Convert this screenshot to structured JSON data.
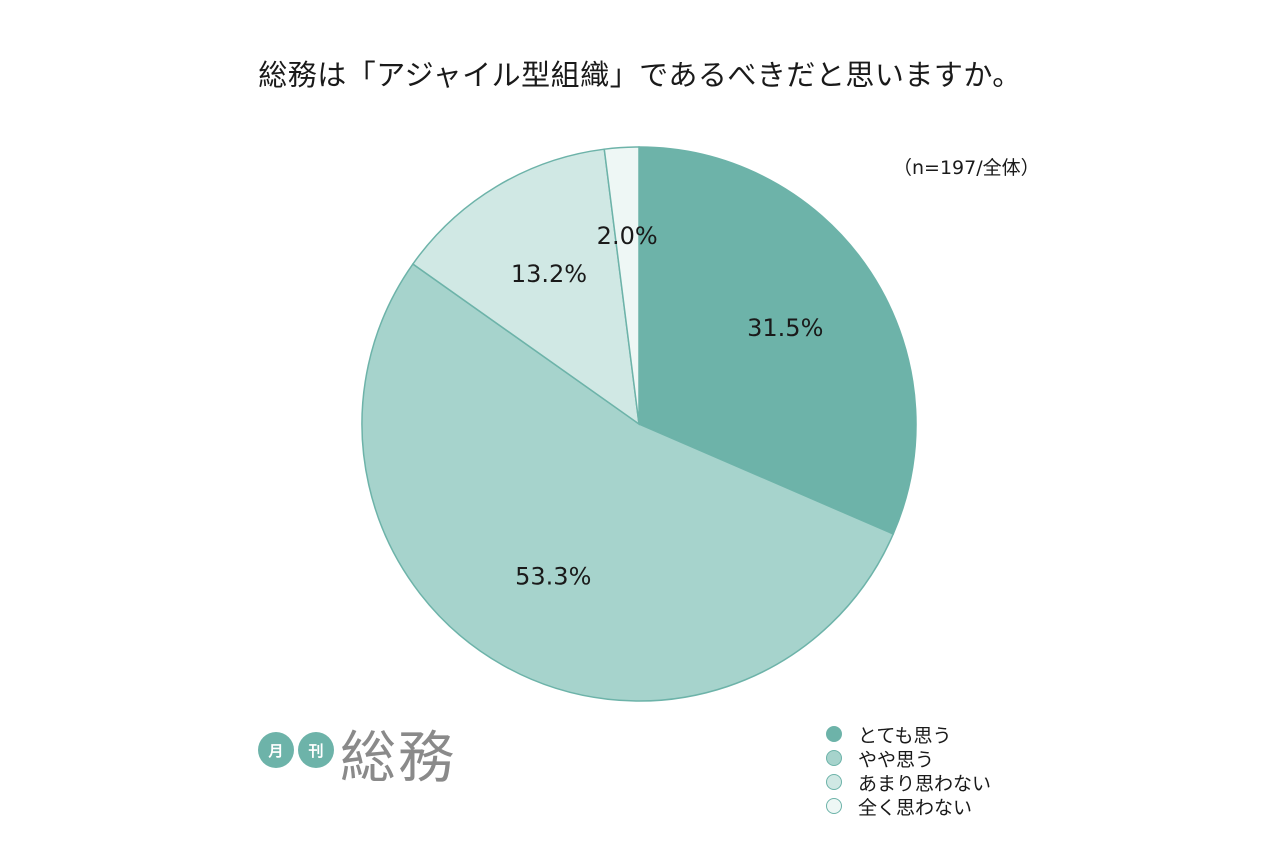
{
  "title": "総務は「アジャイル型組織」であるべきだと思いますか。",
  "note": "（n=197/全体）",
  "logo": {
    "badge1": "月",
    "badge2": "刊",
    "text": "総務"
  },
  "colors": {
    "slice_1": "#6db3a9",
    "slice_2": "#a6d3cc",
    "slice_3": "#d0e8e4",
    "slice_4": "#eef7f5",
    "stroke": "#6db3a9",
    "logo_badge": "#6db3a9",
    "logo_text": "#8a8a8a"
  },
  "chart_data": {
    "type": "pie",
    "categories": [
      "とても思う",
      "やや思う",
      "あまり思わない",
      "全く思わない"
    ],
    "values": [
      31.5,
      53.3,
      13.2,
      2.0
    ],
    "labels": [
      "31.5%",
      "53.3%",
      "13.2%",
      "2.0%"
    ],
    "title": "総務は「アジャイル型組織」であるべきだと思いますか。",
    "legend": "bottom-right"
  }
}
